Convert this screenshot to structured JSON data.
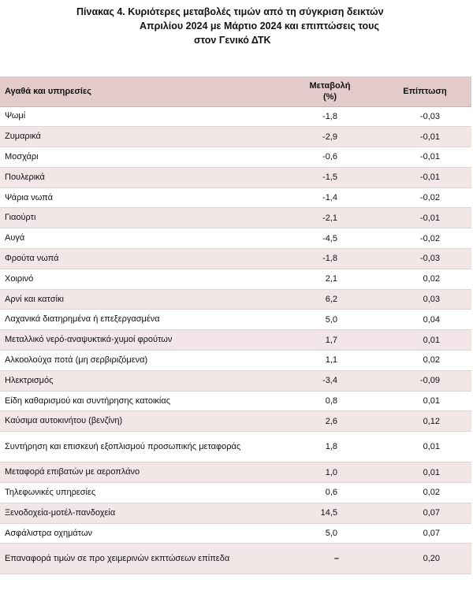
{
  "title": {
    "line1": "Πίνακας  4. Κυριότερες μεταβολές τιμών από τη σύγκριση δεικτών",
    "line2": "Απριλίου 2024 με Μάρτιο 2024 και επιπτώσεις τους",
    "line3": "στον Γενικό ΔΤΚ"
  },
  "table": {
    "headers": {
      "name": "Αγαθά και υπηρεσίες",
      "change_line1": "Μεταβολή",
      "change_line2": "(%)",
      "impact": "Επίπτωση"
    },
    "rows": [
      {
        "name": "Ψωμί",
        "change": "-1,8",
        "impact": "-0,03"
      },
      {
        "name": "Ζυμαρικά",
        "change": "-2,9",
        "impact": "-0,01"
      },
      {
        "name": "Μοσχάρι",
        "change": "-0,6",
        "impact": "-0,01"
      },
      {
        "name": "Πουλερικά",
        "change": "-1,5",
        "impact": "-0,01"
      },
      {
        "name": "Ψάρια νωπά",
        "change": "-1,4",
        "impact": "-0,02"
      },
      {
        "name": "Γιαούρτι",
        "change": "-2,1",
        "impact": "-0,01"
      },
      {
        "name": "Αυγά",
        "change": "-4,5",
        "impact": "-0,02"
      },
      {
        "name": "Φρούτα νωπά",
        "change": "-1,8",
        "impact": "-0,03"
      },
      {
        "name": "Χοιρινό",
        "change": "2,1",
        "impact": "0,02"
      },
      {
        "name": "Αρνί και κατσίκι",
        "change": "6,2",
        "impact": "0,03"
      },
      {
        "name": "Λαχανικά διατηρημένα ή επεξεργασμένα",
        "change": "5,0",
        "impact": "0,04"
      },
      {
        "name": "Μεταλλικό νερό-αναψυκτικά-χυμοί φρούτων",
        "change": "1,7",
        "impact": "0,01"
      },
      {
        "name": "Αλκοολούχα ποτά (μη σερβιριζόμενα)",
        "change": "1,1",
        "impact": "0,02"
      },
      {
        "name": "Ηλεκτρισμός",
        "change": "-3,4",
        "impact": "-0,09"
      },
      {
        "name": "Είδη καθαρισμού και συντήρησης κατοικίας",
        "change": "0,8",
        "impact": "0,01"
      },
      {
        "name": "Καύσιμα αυτοκινήτου (βενζίνη)",
        "change": "2,6",
        "impact": "0,12"
      },
      {
        "name": "Συντήρηση και επισκευή εξοπλισμού προσωπικής μεταφοράς",
        "change": "1,8",
        "impact": "0,01"
      },
      {
        "name": "Μεταφορά επιβατών με αεροπλάνο",
        "change": "1,0",
        "impact": "0,01"
      },
      {
        "name": "Τηλεφωνικές υπηρεσίες",
        "change": "0,6",
        "impact": "0,02"
      },
      {
        "name": "Ξενοδοχεία-μοτέλ-πανδοχεία",
        "change": "14,5",
        "impact": "0,07"
      },
      {
        "name": "Ασφάλιστρα οχημάτων",
        "change": "5,0",
        "impact": "0,07"
      },
      {
        "name": "Επαναφορά τιμών σε προ χειμερινών εκπτώσεων επίπεδα",
        "change": "–",
        "impact": "0,20"
      }
    ]
  }
}
